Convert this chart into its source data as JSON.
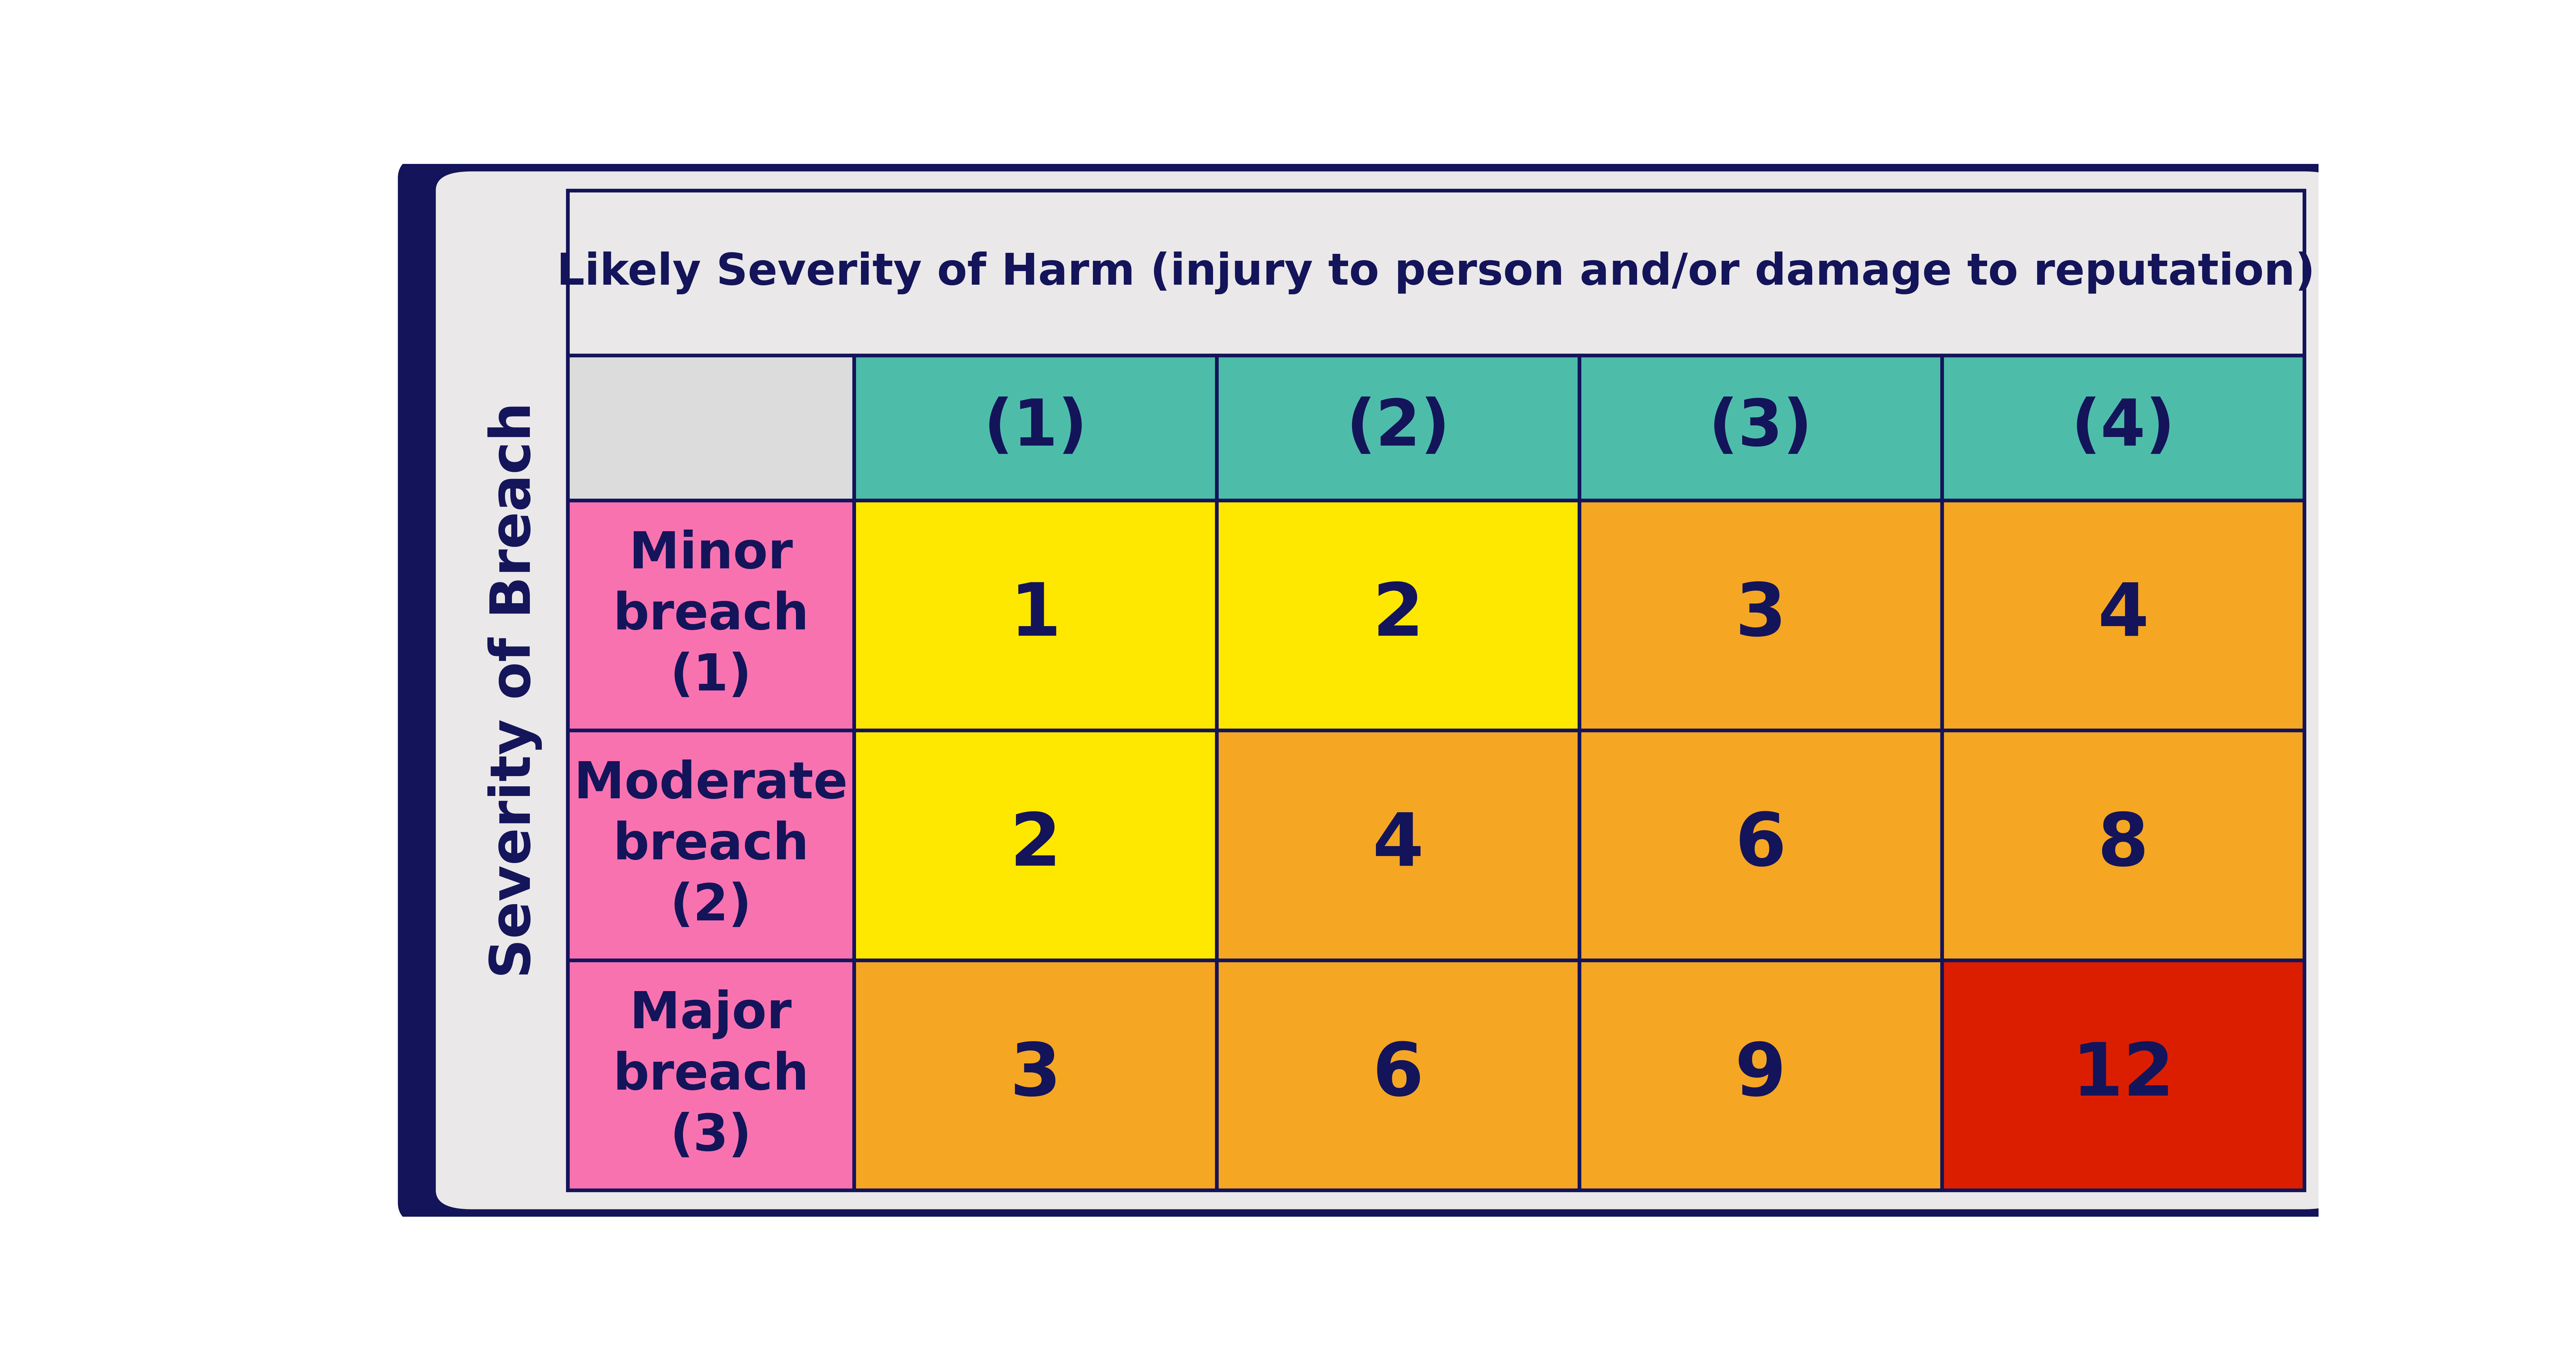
{
  "title": "Likely Severity of Harm (injury to person and/or damage to reputation)",
  "y_label": "Severity of Breach",
  "col_headers": [
    "(1)",
    "(2)",
    "(3)",
    "(4)"
  ],
  "row_headers": [
    "Minor\nbreach\n(1)",
    "Moderate\nbreach\n(2)",
    "Major\nbreach\n(3)"
  ],
  "cell_values": [
    [
      "1",
      "2",
      "3",
      "4"
    ],
    [
      "2",
      "4",
      "6",
      "8"
    ],
    [
      "3",
      "6",
      "9",
      "12"
    ]
  ],
  "cell_colors": [
    [
      "#FFE800",
      "#FFE800",
      "#F5A623",
      "#F5A623"
    ],
    [
      "#FFE800",
      "#F5A623",
      "#F5A623",
      "#F5A623"
    ],
    [
      "#F5A623",
      "#F5A623",
      "#F5A623",
      "#DC1E00"
    ]
  ],
  "col_header_color": "#4DBDAA",
  "row_header_color": "#F972B0",
  "title_bg": "#EAE8E8",
  "corner_cell_bg": "#DCDCDC",
  "outer_bg": "#FFFFFF",
  "border_color": "#14145A",
  "title_color": "#14145A",
  "text_color": "#14145A",
  "title_fontsize": 95,
  "col_header_fontsize": 140,
  "row_header_fontsize": 110,
  "cell_fontsize": 160,
  "ylabel_fontsize": 120
}
